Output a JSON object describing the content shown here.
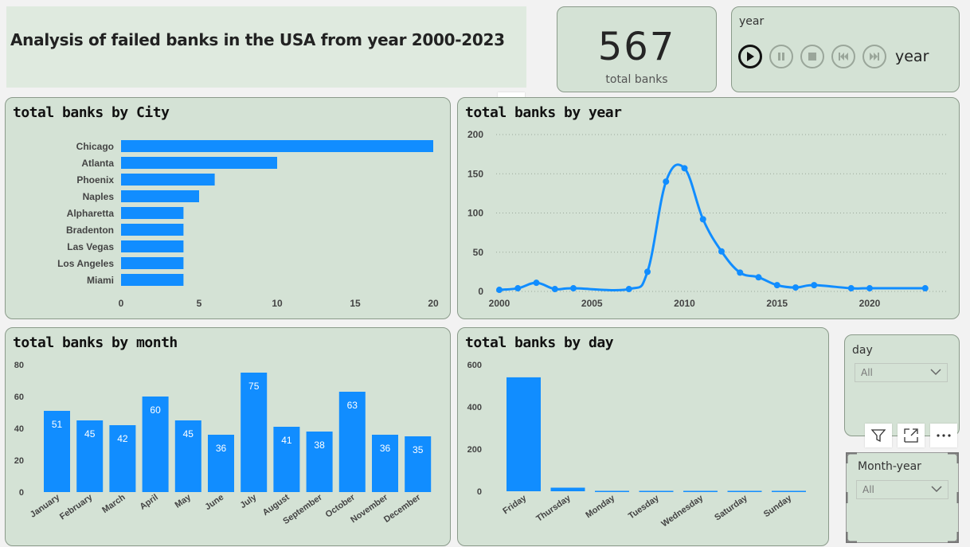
{
  "header": {
    "title": "Analysis of failed banks in the USA from year 2000-2023"
  },
  "kpi": {
    "value": "567",
    "label": "total banks"
  },
  "year_slicer": {
    "label": "year",
    "value_label": "year"
  },
  "day_slicer": {
    "label": "day",
    "selected": "All"
  },
  "month_year_slicer": {
    "label": "Month-year",
    "selected": "All"
  },
  "icons": {
    "play": "play-icon",
    "pause": "pause-icon",
    "stop": "stop-icon",
    "prev": "skip-back-icon",
    "next": "skip-forward-icon",
    "more": "more-icon",
    "filter": "filter-icon",
    "focus": "focus-mode-icon"
  },
  "colors": {
    "bar": "#118dff",
    "card": "#d4e2d5"
  },
  "chart_data": [
    {
      "id": "city",
      "type": "bar",
      "orientation": "horizontal",
      "title": "total banks by City",
      "categories": [
        "Chicago",
        "Atlanta",
        "Phoenix",
        "Naples",
        "Alpharetta",
        "Bradenton",
        "Las Vegas",
        "Los Angeles",
        "Miami"
      ],
      "values": [
        20,
        10,
        6,
        5,
        4,
        4,
        4,
        4,
        4
      ],
      "xlim": [
        0,
        20
      ],
      "xticks": [
        "0",
        "5",
        "10",
        "15",
        "20"
      ]
    },
    {
      "id": "year",
      "type": "line",
      "title": "total banks by year",
      "x": [
        2000,
        2001,
        2002,
        2003,
        2004,
        2007,
        2008,
        2009,
        2010,
        2011,
        2012,
        2013,
        2014,
        2015,
        2016,
        2017,
        2019,
        2020,
        2023
      ],
      "y": [
        2,
        4,
        11,
        3,
        4,
        3,
        25,
        140,
        157,
        92,
        51,
        24,
        18,
        8,
        5,
        8,
        4,
        4,
        4
      ],
      "xlim": [
        2000,
        2024
      ],
      "ylim": [
        0,
        200
      ],
      "xticks": [
        "2000",
        "2005",
        "2010",
        "2015",
        "2020"
      ],
      "yticks": [
        "0",
        "50",
        "100",
        "150",
        "200"
      ]
    },
    {
      "id": "month",
      "type": "bar",
      "title": "total banks by month",
      "categories": [
        "January",
        "February",
        "March",
        "April",
        "May",
        "June",
        "July",
        "August",
        "September",
        "October",
        "November",
        "December"
      ],
      "values": [
        51,
        45,
        42,
        60,
        45,
        36,
        75,
        41,
        38,
        63,
        36,
        35
      ],
      "ylim": [
        0,
        80
      ],
      "yticks": [
        "0",
        "20",
        "40",
        "60",
        "80"
      ],
      "data_labels": [
        "51",
        "45",
        "42",
        "60",
        "45",
        "36",
        "75",
        "41",
        "38",
        "63",
        "36",
        "35"
      ]
    },
    {
      "id": "day",
      "type": "bar",
      "title": "total banks by day",
      "categories": [
        "Friday",
        "Thursday",
        "Monday",
        "Tuesday",
        "Wednesday",
        "Saturday",
        "Sunday"
      ],
      "values": [
        540,
        17,
        2,
        2,
        2,
        2,
        2
      ],
      "ylim": [
        0,
        600
      ],
      "yticks": [
        "0",
        "200",
        "400",
        "600"
      ]
    }
  ]
}
